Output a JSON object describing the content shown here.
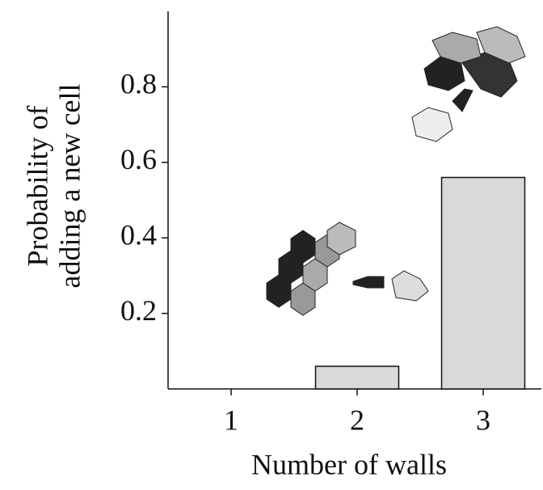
{
  "chart_data": {
    "type": "bar",
    "ylabel": [
      "Probability of",
      "adding a new cell"
    ],
    "xlabel": "Number of walls",
    "categories": [
      "1",
      "2",
      "3"
    ],
    "values": [
      0,
      0.06,
      0.56
    ],
    "color": "#d9d9d9",
    "ylim": [
      0,
      1
    ],
    "yticks": [
      0.2,
      0.4,
      0.6,
      0.8
    ]
  }
}
